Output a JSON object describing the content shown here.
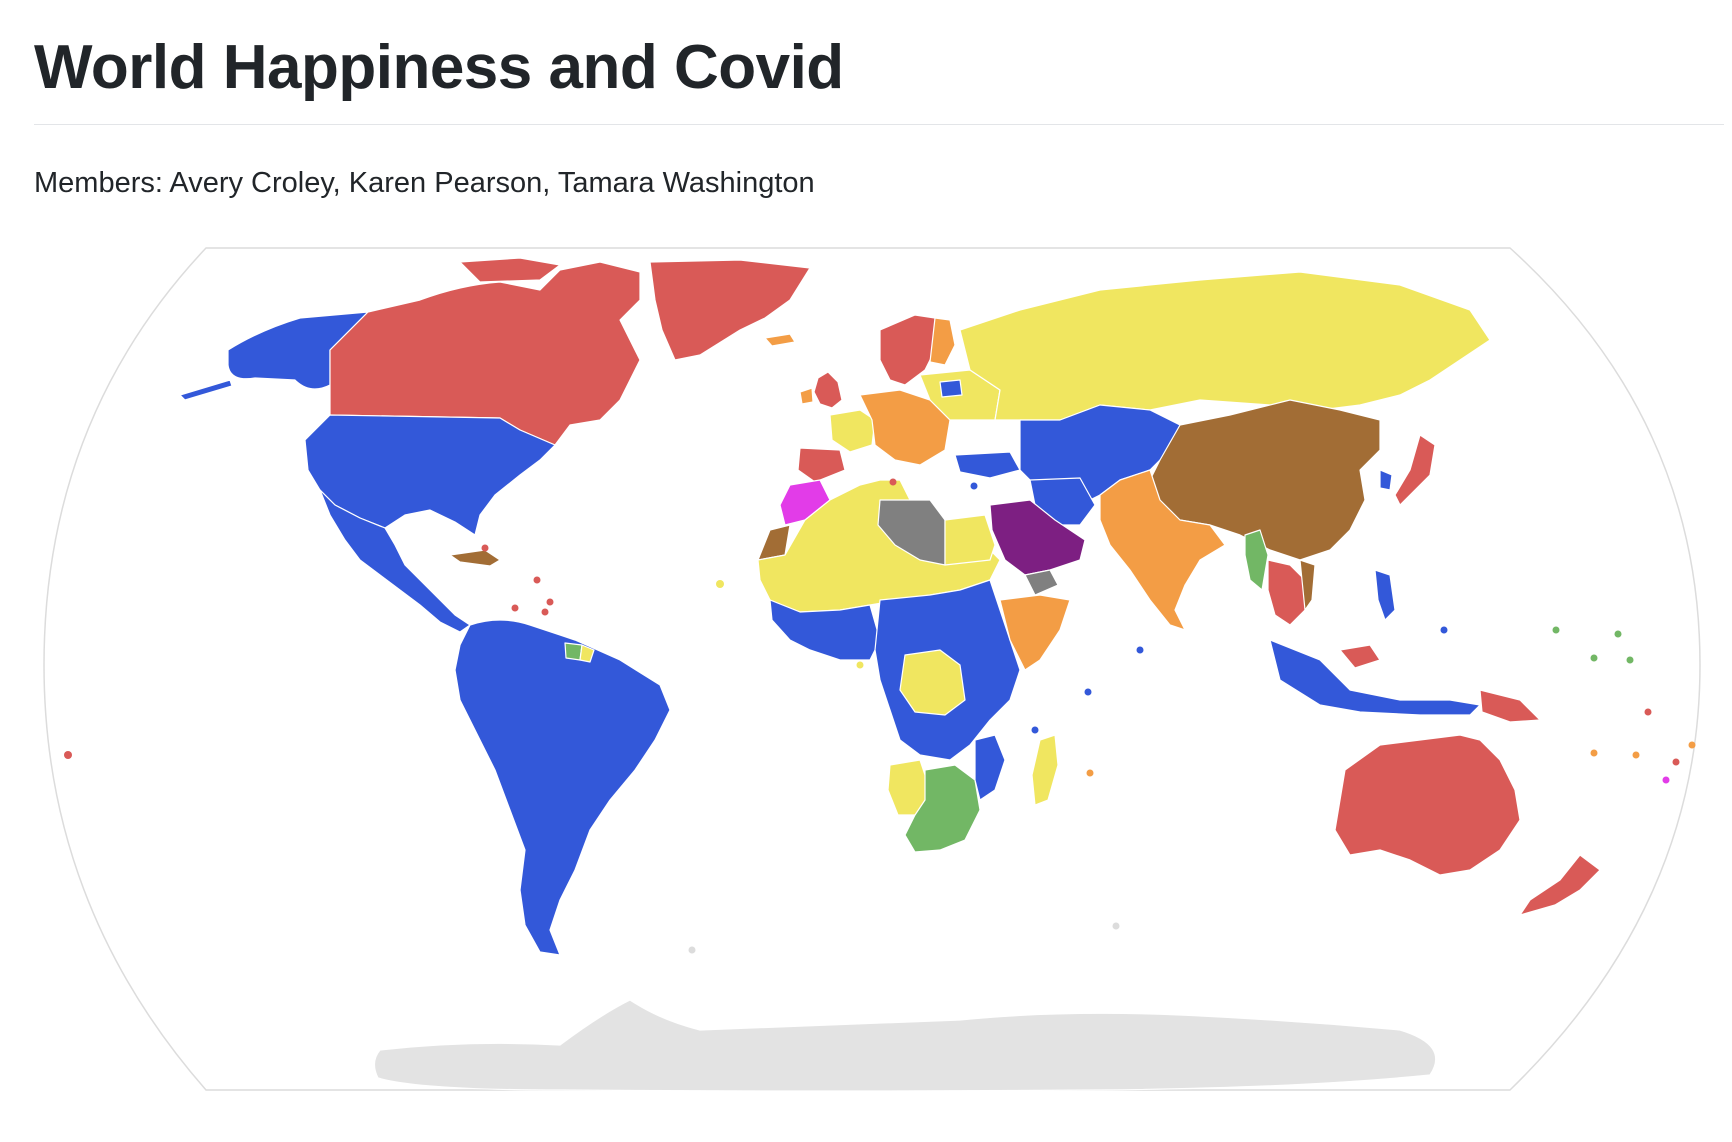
{
  "page": {
    "title": "World Happiness and Covid",
    "members": "Members: Avery Croley, Karen Pearson, Tamara Washington"
  },
  "map": {
    "projection": "robinson",
    "colors": {
      "blue": "#3358d9",
      "red": "#d95a57",
      "yellow": "#f0e660",
      "orange": "#f39d45",
      "brown": "#a26d35",
      "purple": "#7d1f82",
      "magenta": "#e23ce8",
      "gray": "#808080",
      "green": "#72b765",
      "antarctica": "#e3e3e3",
      "border": "#ffffff",
      "outline": "#dddddd"
    },
    "regions": [
      {
        "name": "north-america-usa",
        "color": "blue"
      },
      {
        "name": "canada",
        "color": "red"
      },
      {
        "name": "greenland",
        "color": "red"
      },
      {
        "name": "mexico-central-america",
        "color": "blue"
      },
      {
        "name": "south-america",
        "color": "blue"
      },
      {
        "name": "northern-europe",
        "color": "red"
      },
      {
        "name": "western-europe",
        "color": "yellow"
      },
      {
        "name": "central-europe",
        "color": "orange"
      },
      {
        "name": "russia",
        "color": "yellow"
      },
      {
        "name": "north-africa-sahel",
        "color": "yellow"
      },
      {
        "name": "libya",
        "color": "gray"
      },
      {
        "name": "morocco",
        "color": "magenta"
      },
      {
        "name": "central-africa",
        "color": "blue"
      },
      {
        "name": "drc",
        "color": "yellow"
      },
      {
        "name": "ethiopia-somalia",
        "color": "orange"
      },
      {
        "name": "southern-africa",
        "color": "green"
      },
      {
        "name": "middle-east",
        "color": "blue"
      },
      {
        "name": "saudi-arabia",
        "color": "purple"
      },
      {
        "name": "yemen",
        "color": "gray"
      },
      {
        "name": "central-asia",
        "color": "blue"
      },
      {
        "name": "china",
        "color": "brown"
      },
      {
        "name": "india",
        "color": "orange"
      },
      {
        "name": "myanmar",
        "color": "green"
      },
      {
        "name": "southeast-asia",
        "color": "red"
      },
      {
        "name": "indonesia",
        "color": "blue"
      },
      {
        "name": "japan",
        "color": "red"
      },
      {
        "name": "australia",
        "color": "red"
      },
      {
        "name": "new-zealand",
        "color": "red"
      },
      {
        "name": "madagascar",
        "color": "yellow"
      },
      {
        "name": "antarctica",
        "color": "antarctica"
      }
    ]
  }
}
